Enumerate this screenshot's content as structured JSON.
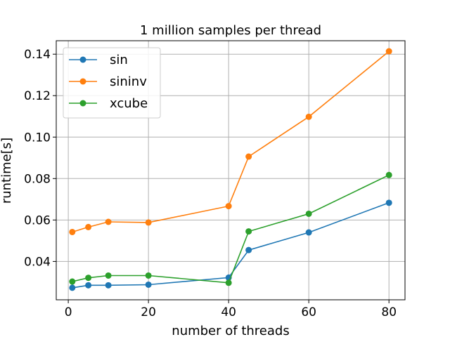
{
  "chart_data": {
    "type": "line",
    "title": "1 million samples per thread",
    "xlabel": "number of threads",
    "ylabel": "runtime[s]",
    "xlim": [
      -3,
      84
    ],
    "ylim": [
      0.0215,
      0.1465
    ],
    "xticks": [
      0,
      20,
      40,
      60,
      80
    ],
    "xtick_labels": [
      "0",
      "20",
      "40",
      "60",
      "80"
    ],
    "yticks": [
      0.04,
      0.06,
      0.08,
      0.1,
      0.12,
      0.14
    ],
    "ytick_labels": [
      "0.04",
      "0.06",
      "0.08",
      "0.10",
      "0.12",
      "0.14"
    ],
    "grid": true,
    "legend_position": "top-left",
    "x": [
      1,
      5,
      10,
      20,
      40,
      45,
      60,
      80
    ],
    "series": [
      {
        "name": "sin",
        "color": "#1f77b4",
        "values": [
          0.0273,
          0.0285,
          0.0285,
          0.0288,
          0.0322,
          0.0455,
          0.054,
          0.0683
        ]
      },
      {
        "name": "sininv",
        "color": "#ff7f0e",
        "values": [
          0.0542,
          0.0566,
          0.0591,
          0.0588,
          0.0667,
          0.0906,
          0.1098,
          0.1414
        ]
      },
      {
        "name": "xcube",
        "color": "#2ca02c",
        "values": [
          0.0303,
          0.0321,
          0.0332,
          0.0332,
          0.0297,
          0.0545,
          0.063,
          0.0817
        ]
      }
    ]
  }
}
